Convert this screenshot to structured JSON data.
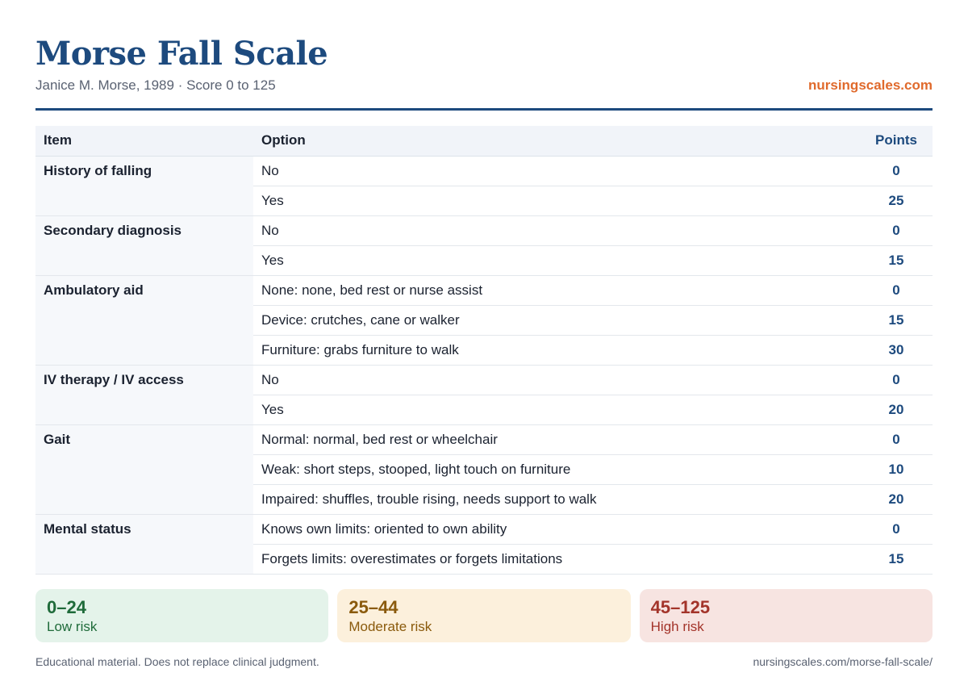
{
  "header": {
    "title": "Morse Fall Scale",
    "subtitle": "Janice M. Morse, 1989 · Score 0 to 125",
    "site": "nursingscales.com"
  },
  "table": {
    "columns": {
      "item": "Item",
      "option": "Option",
      "points": "Points"
    },
    "items": [
      {
        "name": "History of falling",
        "options": [
          {
            "label": "No",
            "points": "0"
          },
          {
            "label": "Yes",
            "points": "25"
          }
        ]
      },
      {
        "name": "Secondary diagnosis",
        "options": [
          {
            "label": "No",
            "points": "0"
          },
          {
            "label": "Yes",
            "points": "15"
          }
        ]
      },
      {
        "name": "Ambulatory aid",
        "options": [
          {
            "label": "None: none, bed rest or nurse assist",
            "points": "0"
          },
          {
            "label": "Device: crutches, cane or walker",
            "points": "15"
          },
          {
            "label": "Furniture: grabs furniture to walk",
            "points": "30"
          }
        ]
      },
      {
        "name": "IV therapy / IV access",
        "options": [
          {
            "label": "No",
            "points": "0"
          },
          {
            "label": "Yes",
            "points": "20"
          }
        ]
      },
      {
        "name": "Gait",
        "options": [
          {
            "label": "Normal: normal, bed rest or wheelchair",
            "points": "0"
          },
          {
            "label": "Weak: short steps, stooped, light touch on furniture",
            "points": "10"
          },
          {
            "label": "Impaired: shuffles, trouble rising, needs support to walk",
            "points": "20"
          }
        ]
      },
      {
        "name": "Mental status",
        "options": [
          {
            "label": "Knows own limits: oriented to own ability",
            "points": "0"
          },
          {
            "label": "Forgets limits: overestimates or forgets limitations",
            "points": "15"
          }
        ]
      }
    ]
  },
  "bands": [
    {
      "range": "0–24",
      "label": "Low risk",
      "bg": "#e4f3ea",
      "color": "#1f6b3a"
    },
    {
      "range": "25–44",
      "label": "Moderate risk",
      "bg": "#fcf0dc",
      "color": "#8a5a0c"
    },
    {
      "range": "45–125",
      "label": "High risk",
      "bg": "#f7e4e1",
      "color": "#a3342a"
    }
  ],
  "footer": {
    "disclaimer": "Educational material. Does not replace clinical judgment.",
    "url": "nursingscales.com/morse-fall-scale/"
  }
}
